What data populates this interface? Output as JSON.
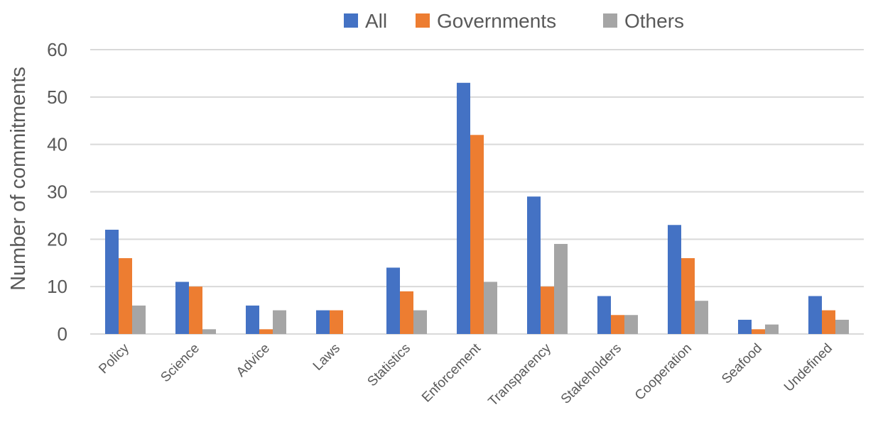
{
  "chart_data": {
    "type": "bar",
    "title": "",
    "xlabel": "",
    "ylabel": "Number of commitments",
    "ylim": [
      0,
      60
    ],
    "yticks": [
      0,
      10,
      20,
      30,
      40,
      50,
      60
    ],
    "grid": true,
    "legend_position": "top",
    "categories": [
      "Policy",
      "Science",
      "Advice",
      "Laws",
      "Statistics",
      "Enforcement",
      "Transparency",
      "Stakeholders",
      "Cooperation",
      "Seafood",
      "Undefined"
    ],
    "series": [
      {
        "name": "All",
        "color": "#4472c4",
        "values": [
          22,
          11,
          6,
          5,
          14,
          53,
          29,
          8,
          23,
          3,
          8
        ]
      },
      {
        "name": "Governments",
        "color": "#ed7d31",
        "values": [
          16,
          10,
          1,
          5,
          9,
          42,
          10,
          4,
          16,
          1,
          5
        ]
      },
      {
        "name": "Others",
        "color": "#a5a5a5",
        "values": [
          6,
          1,
          5,
          0,
          5,
          11,
          19,
          4,
          7,
          2,
          3
        ]
      }
    ]
  }
}
